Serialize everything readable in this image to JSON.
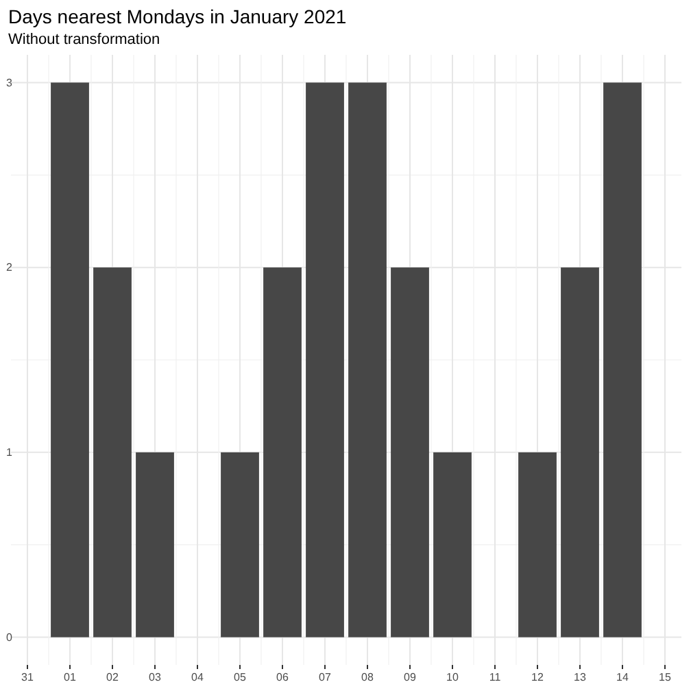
{
  "chart_data": {
    "type": "bar",
    "title": "Days nearest Mondays in January 2021",
    "subtitle": "Without transformation",
    "categories": [
      "31",
      "01",
      "02",
      "03",
      "04",
      "05",
      "06",
      "07",
      "08",
      "09",
      "10",
      "11",
      "12",
      "13",
      "14",
      "15"
    ],
    "values": [
      null,
      3,
      2,
      1,
      0,
      1,
      2,
      3,
      3,
      2,
      1,
      0,
      1,
      2,
      3,
      null
    ],
    "color": "#474747",
    "ylim": [
      -0.15,
      3.15
    ],
    "yticks": [
      0,
      1,
      2,
      3
    ],
    "grid": true
  }
}
